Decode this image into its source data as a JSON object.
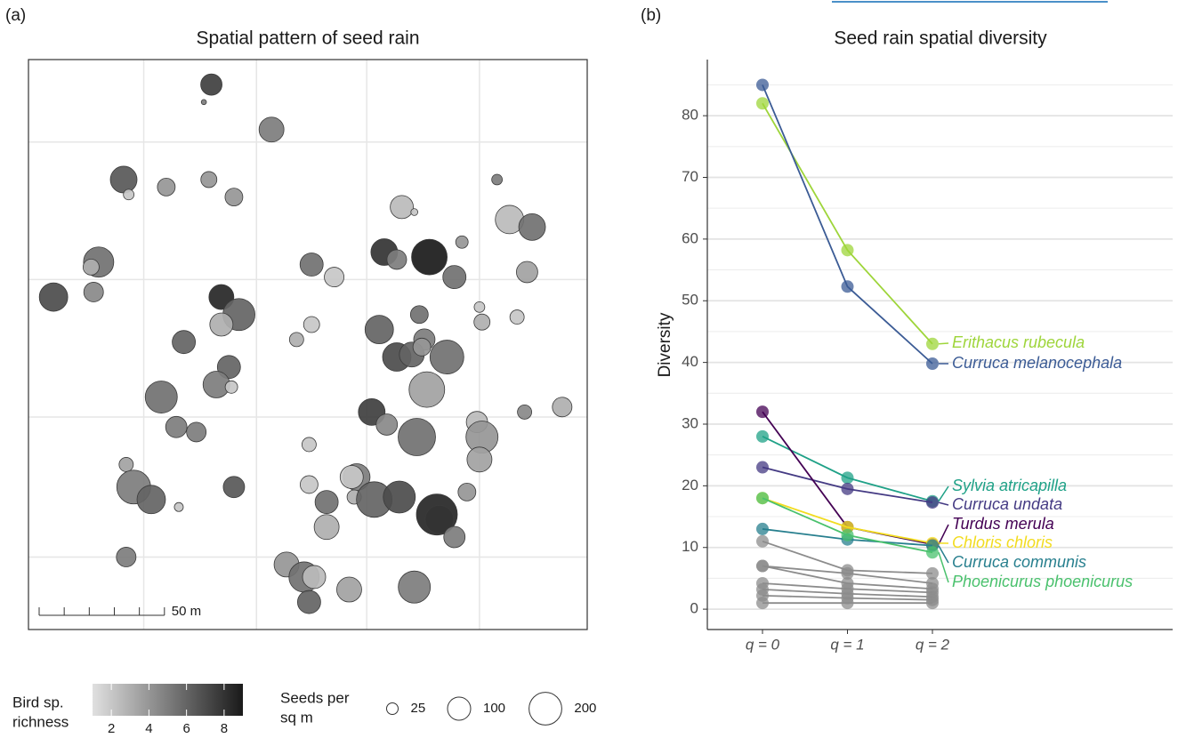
{
  "chart_data": [
    {
      "type": "bubble_map",
      "panel_label": "(a)",
      "title": "Spatial pattern of seed rain",
      "x": [
        73,
        70,
        97,
        38,
        40,
        55,
        72,
        82,
        187,
        149,
        154,
        192,
        201,
        173,
        142,
        160,
        147,
        28,
        25,
        113,
        122,
        170,
        199,
        10,
        26,
        77,
        84,
        77,
        180,
        181,
        195,
        113,
        107,
        156,
        140,
        158,
        147,
        153,
        157,
        167,
        62,
        80,
        75,
        81,
        159,
        53,
        59,
        67,
        137,
        143,
        198,
        213,
        179,
        155,
        181,
        180,
        112,
        39,
        42,
        49,
        60,
        82,
        112,
        131,
        129,
        130,
        138,
        148,
        175,
        119,
        163,
        164,
        119,
        170,
        39,
        103,
        110,
        114,
        128,
        154,
        112
      ],
      "y": [
        218,
        211,
        200,
        180,
        174,
        177,
        180,
        173,
        180,
        169,
        167,
        164,
        161,
        155,
        151,
        149,
        148,
        147,
        145,
        146,
        141,
        141,
        143,
        133,
        135,
        133,
        126,
        122,
        129,
        123,
        125,
        122,
        116,
        126,
        120,
        116,
        109,
        110,
        113,
        109,
        115,
        105,
        98,
        97,
        96,
        93,
        81,
        79,
        87,
        82,
        87,
        89,
        83,
        77,
        77,
        68,
        74,
        66,
        57,
        52,
        49,
        57,
        58,
        61,
        61,
        53,
        52,
        53,
        55,
        51,
        46,
        44,
        41,
        37,
        29,
        26,
        21,
        21,
        16,
        17,
        11
      ],
      "sizes": [
        85,
        5,
        116,
        133,
        21,
        59,
        48,
        59,
        21,
        100,
        9,
        151,
        133,
        29,
        133,
        237,
        72,
        171,
        48,
        100,
        72,
        100,
        85,
        151,
        72,
        116,
        192,
        100,
        21,
        48,
        38,
        48,
        38,
        59,
        151,
        85,
        151,
        116,
        59,
        214,
        100,
        100,
        133,
        29,
        237,
        192,
        85,
        72,
        133,
        85,
        38,
        72,
        85,
        261,
        192,
        116,
        38,
        38,
        214,
        151,
        15,
        85,
        59,
        133,
        100,
        38,
        237,
        192,
        59,
        100,
        313,
        151,
        116,
        85,
        72,
        116,
        171,
        100,
        116,
        192,
        100
      ],
      "richness": [
        7.5,
        5,
        5,
        6.5,
        2,
        4,
        4,
        4,
        5,
        2.5,
        2,
        2.5,
        5.5,
        4,
        8,
        9,
        5,
        5.5,
        3,
        5.5,
        2,
        5.5,
        3.5,
        7,
        4.5,
        8.5,
        6,
        3,
        2,
        3,
        2,
        2,
        3,
        5.5,
        6,
        5,
        7,
        6,
        4,
        5.5,
        6,
        6,
        5,
        2,
        3.5,
        5.5,
        5,
        5,
        7.5,
        4.5,
        4.5,
        3,
        2.5,
        5.5,
        4,
        3.5,
        2,
        3.5,
        5,
        6,
        2,
        6.5,
        2,
        5,
        2,
        3,
        6,
        7,
        4,
        5.5,
        8.5,
        8,
        3,
        5,
        5,
        4,
        5.5,
        2.5,
        3.5,
        5,
        6
      ],
      "xlim": [
        0,
        223
      ],
      "ylim": [
        0,
        228
      ],
      "xgrid": [
        46,
        91,
        135,
        180
      ],
      "ygrid": [
        29,
        85,
        140,
        195
      ],
      "scale_bar": {
        "value": 50,
        "label": "50 m"
      },
      "scale_ticks": [
        0,
        10,
        20,
        30,
        40,
        50
      ],
      "color_title": [
        "Bird sp.",
        "richness"
      ],
      "color_lim": [
        1,
        9
      ],
      "color_ticks": [
        2,
        4,
        6,
        8
      ],
      "color_range": [
        "#e0e0e0",
        "#1a1a1a"
      ],
      "size_title": [
        "Seeds per",
        "sq m"
      ],
      "size_legend": [
        25,
        100,
        200
      ]
    },
    {
      "type": "line",
      "panel_label": "(b)",
      "title": "Seed rain spatial diversity",
      "ylabel": "Diversity",
      "categories": [
        "q = 0",
        "q = 1",
        "q = 2"
      ],
      "ylim": [
        -3.3,
        89.1
      ],
      "yticks": [
        0,
        10,
        20,
        30,
        40,
        50,
        60,
        70,
        80
      ],
      "minor_yticks": [
        5,
        15,
        25,
        35,
        45,
        55,
        65,
        75,
        85
      ],
      "grid": true,
      "series": [
        {
          "color": "#8c8c8c",
          "values": [
            11,
            6.3,
            5.8
          ]
        },
        {
          "color": "#8c8c8c",
          "values": [
            7,
            5.8,
            4.2
          ]
        },
        {
          "color": "#8c8c8c",
          "values": [
            7,
            4.2,
            3.3
          ]
        },
        {
          "color": "#8c8c8c",
          "values": [
            4.2,
            3.3,
            2.7
          ]
        },
        {
          "color": "#8c8c8c",
          "values": [
            3.2,
            2.5,
            2
          ]
        },
        {
          "color": "#8c8c8c",
          "values": [
            2.2,
            1.8,
            1.5
          ]
        },
        {
          "color": "#8c8c8c",
          "values": [
            1,
            1,
            1
          ]
        },
        {
          "name": "Erithacus rubecula",
          "color": "#9ed53a",
          "values": [
            82,
            58.2,
            43
          ]
        },
        {
          "name": "Curruca melanocephala",
          "color": "#3b5b95",
          "values": [
            85,
            52.3,
            39.8
          ]
        },
        {
          "name": "Sylvia atricapilla",
          "color": "#1fa187",
          "values": [
            28,
            21.3,
            17.5
          ]
        },
        {
          "name": "Curruca undata",
          "color": "#443a83",
          "values": [
            23,
            19.5,
            17.3
          ]
        },
        {
          "name": "Turdus merula",
          "color": "#440154",
          "values": [
            32,
            13.3,
            10.5
          ]
        },
        {
          "name": "Chloris chloris",
          "color": "#f2dc1f",
          "values": [
            18,
            13.3,
            10.7
          ]
        },
        {
          "name": "Curruca communis",
          "color": "#277f8e",
          "values": [
            13,
            11.3,
            10.3
          ]
        },
        {
          "name": "Phoenicurus phoenicurus",
          "color": "#4ac16d",
          "values": [
            18,
            12,
            9.2
          ]
        }
      ]
    }
  ]
}
